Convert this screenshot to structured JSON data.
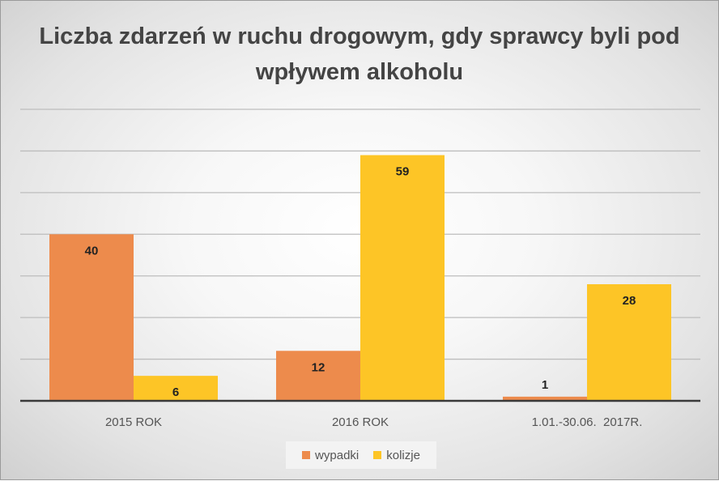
{
  "chart_data": {
    "type": "bar",
    "title": "Liczba zdarzeń w ruchu drogowym, gdy sprawcy byli pod wpływem alkoholu",
    "categories": [
      "2015 ROK",
      "2016 ROK",
      "1.01.-30.06.  2017R."
    ],
    "series": [
      {
        "name": "wypadki",
        "values": [
          40,
          12,
          1
        ],
        "color": "#ED8B4C"
      },
      {
        "name": "kolizje",
        "values": [
          6,
          59,
          28
        ],
        "color": "#FDC526"
      }
    ],
    "xlabel": "",
    "ylabel": "",
    "ylim": [
      0,
      70
    ],
    "ytick_step": 10,
    "y_tick_labels_shown": false,
    "grid": true,
    "data_labels": true,
    "legend_position": "bottom"
  }
}
